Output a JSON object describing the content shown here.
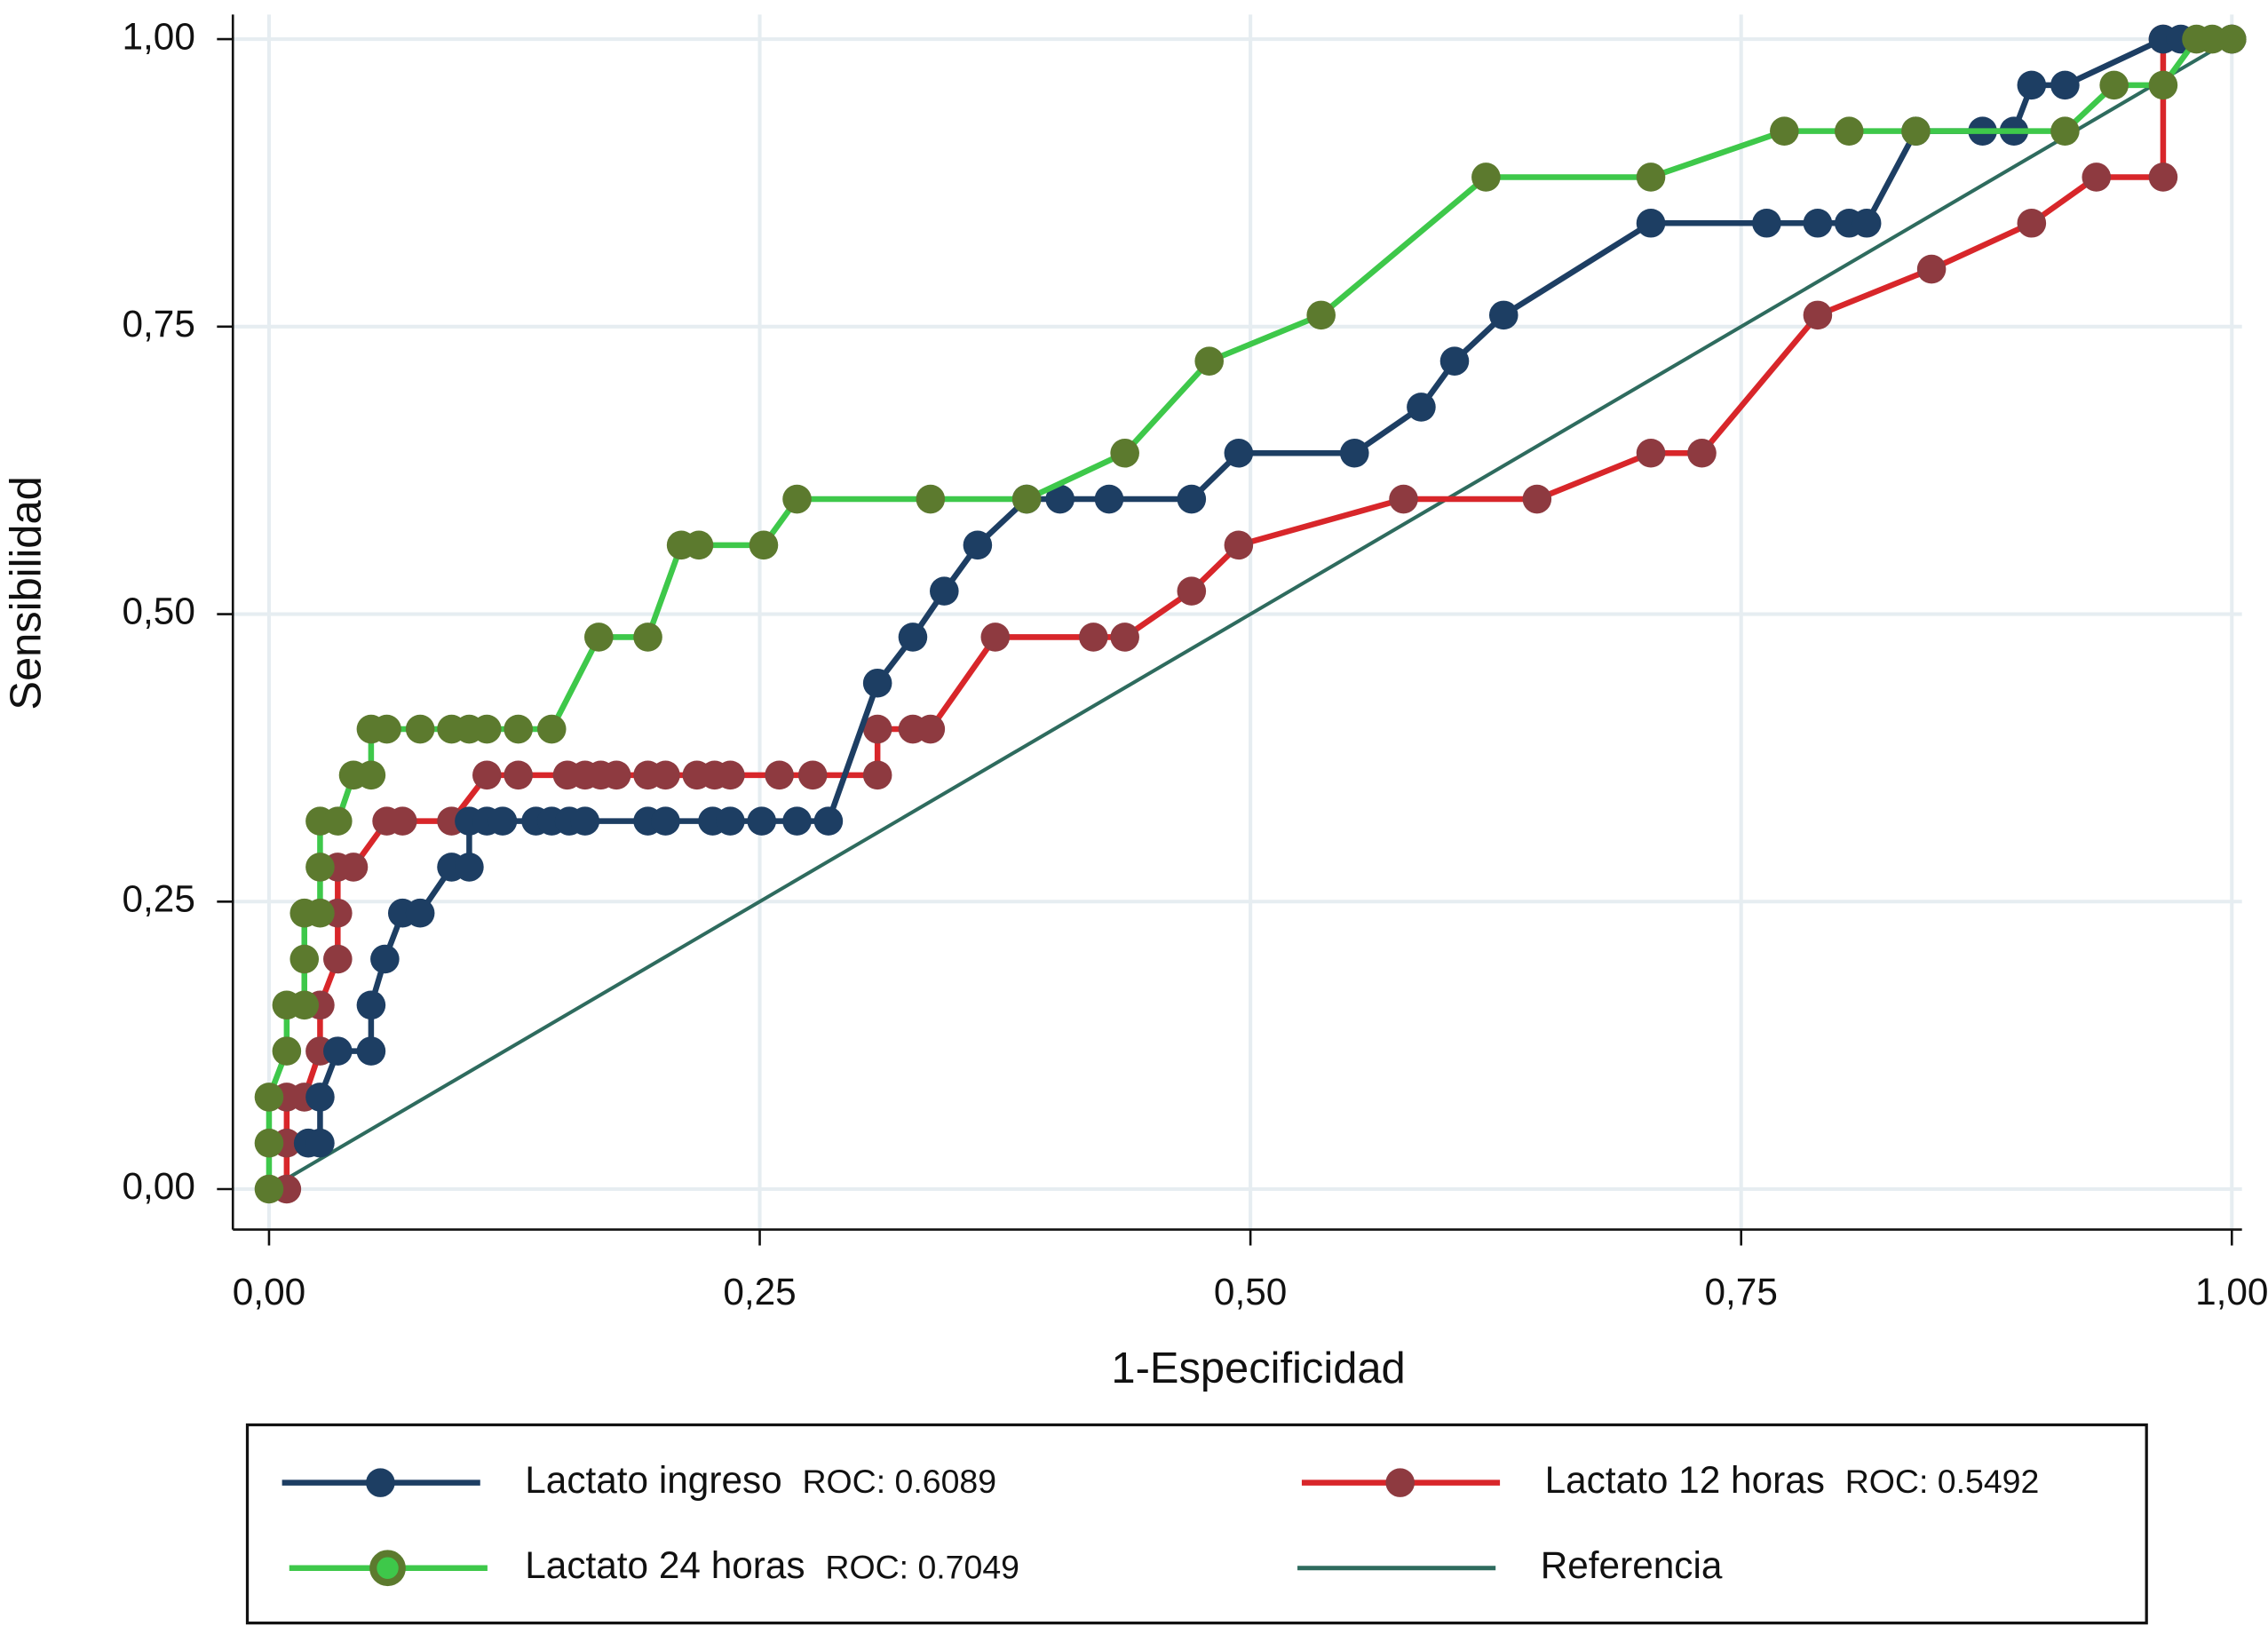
{
  "chart_data": {
    "type": "line",
    "x_label": "1-Especificidad",
    "y_label": "Sensibilidad",
    "xlim": [
      0,
      1
    ],
    "ylim": [
      0,
      1
    ],
    "xticks": [
      {
        "value": 0,
        "label": "0,00"
      },
      {
        "value": 0.25,
        "label": "0,25"
      },
      {
        "value": 0.5,
        "label": "0,50"
      },
      {
        "value": 0.75,
        "label": "0,75"
      },
      {
        "value": 1,
        "label": "1,00"
      }
    ],
    "yticks": [
      {
        "value": 0,
        "label": "0,00"
      },
      {
        "value": 0.25,
        "label": "0,25"
      },
      {
        "value": 0.5,
        "label": "0,50"
      },
      {
        "value": 0.75,
        "label": "0,75"
      },
      {
        "value": 1,
        "label": "1,00"
      }
    ],
    "grid": true,
    "series": [
      {
        "name": "Lactato ingreso",
        "roc_label": "ROC: 0.6089",
        "color": "#1d3e63",
        "marker_color": "#1d3e63",
        "x": [
          0.02,
          0.026,
          0.026,
          0.035,
          0.052,
          0.052,
          0.059,
          0.068,
          0.077,
          0.093,
          0.102,
          0.102,
          0.111,
          0.119,
          0.136,
          0.144,
          0.153,
          0.161,
          0.193,
          0.202,
          0.226,
          0.235,
          0.251,
          0.269,
          0.285,
          0.31,
          0.328,
          0.344,
          0.361,
          0.386,
          0.403,
          0.428,
          0.47,
          0.494,
          0.553,
          0.587,
          0.604,
          0.629,
          0.704,
          0.763,
          0.789,
          0.805,
          0.814,
          0.839,
          0.873,
          0.889,
          0.898,
          0.915,
          0.965,
          0.974,
          1
        ],
        "values": [
          0.04,
          0.04,
          0.08,
          0.12,
          0.12,
          0.16,
          0.2,
          0.24,
          0.24,
          0.28,
          0.28,
          0.32,
          0.32,
          0.32,
          0.32,
          0.32,
          0.32,
          0.32,
          0.32,
          0.32,
          0.32,
          0.32,
          0.32,
          0.32,
          0.32,
          0.44,
          0.48,
          0.52,
          0.56,
          0.6,
          0.6,
          0.6,
          0.6,
          0.64,
          0.64,
          0.68,
          0.72,
          0.76,
          0.84,
          0.84,
          0.84,
          0.84,
          0.84,
          0.92,
          0.92,
          0.92,
          0.96,
          0.96,
          1,
          1,
          1
        ]
      },
      {
        "name": "Lactato 24 horas",
        "roc_label": "ROC: 0.7049",
        "color": "#3ec84a",
        "marker_color": "#5c7a2e",
        "x": [
          0,
          0,
          0,
          0.009,
          0.009,
          0.018,
          0.018,
          0.018,
          0.026,
          0.026,
          0.026,
          0.035,
          0.043,
          0.052,
          0.052,
          0.06,
          0.077,
          0.093,
          0.102,
          0.111,
          0.127,
          0.144,
          0.168,
          0.193,
          0.21,
          0.219,
          0.252,
          0.269,
          0.337,
          0.386,
          0.436,
          0.479,
          0.536,
          0.62,
          0.704,
          0.772,
          0.805,
          0.839,
          0.915,
          0.94,
          0.965,
          0.982,
          0.99,
          1
        ],
        "values": [
          0,
          0.04,
          0.08,
          0.12,
          0.16,
          0.16,
          0.2,
          0.24,
          0.24,
          0.28,
          0.32,
          0.32,
          0.36,
          0.36,
          0.4,
          0.4,
          0.4,
          0.4,
          0.4,
          0.4,
          0.4,
          0.4,
          0.48,
          0.48,
          0.56,
          0.56,
          0.56,
          0.6,
          0.6,
          0.6,
          0.64,
          0.72,
          0.76,
          0.88,
          0.88,
          0.92,
          0.92,
          0.92,
          0.92,
          0.96,
          0.96,
          1,
          1,
          1
        ]
      },
      {
        "name": "Lactato 12 horas",
        "roc_label": "ROC: 0.5492",
        "color": "#d8262a",
        "marker_color": "#8e3a40",
        "x": [
          0.009,
          0.009,
          0.009,
          0.018,
          0.026,
          0.026,
          0.035,
          0.035,
          0.035,
          0.043,
          0.06,
          0.068,
          0.093,
          0.111,
          0.127,
          0.152,
          0.161,
          0.169,
          0.177,
          0.193,
          0.202,
          0.218,
          0.227,
          0.235,
          0.26,
          0.277,
          0.31,
          0.31,
          0.328,
          0.337,
          0.37,
          0.42,
          0.436,
          0.47,
          0.494,
          0.578,
          0.646,
          0.704,
          0.73,
          0.789,
          0.847,
          0.898,
          0.931,
          0.965,
          0.965,
          1
        ],
        "values": [
          0,
          0.04,
          0.08,
          0.08,
          0.12,
          0.16,
          0.2,
          0.24,
          0.28,
          0.28,
          0.32,
          0.32,
          0.32,
          0.36,
          0.36,
          0.36,
          0.36,
          0.36,
          0.36,
          0.36,
          0.36,
          0.36,
          0.36,
          0.36,
          0.36,
          0.36,
          0.36,
          0.4,
          0.4,
          0.4,
          0.48,
          0.48,
          0.48,
          0.52,
          0.56,
          0.6,
          0.6,
          0.64,
          0.64,
          0.76,
          0.8,
          0.84,
          0.88,
          0.88,
          1,
          1
        ]
      },
      {
        "name": "Referencia",
        "color": "#2e6b5e",
        "x": [
          0,
          1
        ],
        "values": [
          0,
          1
        ],
        "markers": false
      }
    ]
  }
}
